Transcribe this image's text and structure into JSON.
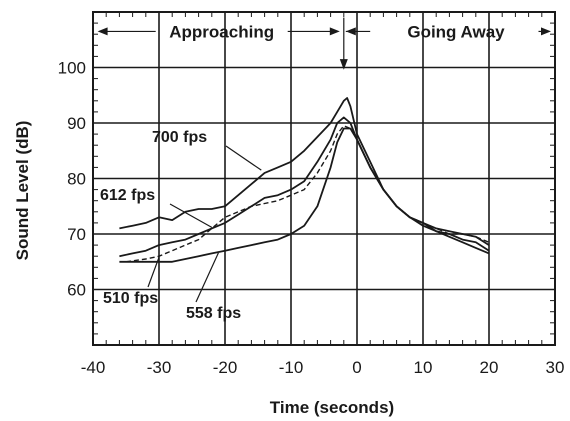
{
  "chart_data": {
    "type": "line",
    "title": "",
    "xlabel": "Time (seconds)",
    "ylabel": "Sound Level (dB)",
    "xlim": [
      -40,
      30
    ],
    "ylim": [
      50,
      110
    ],
    "x_ticks": [
      -40,
      -30,
      -20,
      -10,
      0,
      10,
      20,
      30
    ],
    "y_ticks": [
      60,
      70,
      80,
      90,
      100
    ],
    "x_tick_labels": [
      "-40",
      "-30",
      "-20",
      "-10",
      "0",
      "10",
      "20",
      "30"
    ],
    "y_tick_labels": [
      "60",
      "70",
      "80",
      "90",
      "100"
    ],
    "grid": true,
    "annotations": {
      "approaching": "Approaching",
      "going_away": "Going Away"
    },
    "series": [
      {
        "name": "700 fps",
        "style": "solid",
        "x": [
          -36,
          -34,
          -32,
          -30,
          -28,
          -26,
          -24,
          -22,
          -20,
          -18,
          -16,
          -14,
          -12,
          -10,
          -8,
          -6,
          -4,
          -3,
          -2,
          -1.5,
          -1,
          0,
          2,
          4,
          6,
          8,
          10,
          12,
          14,
          16,
          18,
          20
        ],
        "y": [
          71,
          71.5,
          72,
          73,
          72.5,
          74,
          74.5,
          74.5,
          75,
          77,
          79,
          81,
          82,
          83,
          85,
          87.5,
          90,
          92,
          94,
          94.5,
          93,
          88,
          83,
          78,
          75,
          73,
          72,
          71,
          70.5,
          70,
          69.5,
          68
        ]
      },
      {
        "name": "612 fps",
        "style": "solid",
        "x": [
          -36,
          -34,
          -32,
          -30,
          -28,
          -26,
          -24,
          -22,
          -20,
          -18,
          -16,
          -14,
          -12,
          -10,
          -8,
          -6,
          -4,
          -3,
          -2,
          -1,
          0,
          2,
          4,
          6,
          8,
          10,
          12,
          14,
          16,
          18,
          20
        ],
        "y": [
          66,
          66.5,
          67,
          68,
          68.5,
          69,
          70,
          71,
          72,
          73.5,
          75,
          76.5,
          77,
          78,
          79.5,
          83,
          87,
          90,
          91,
          90,
          87,
          82,
          78,
          75,
          73,
          72,
          70.5,
          70,
          69,
          68.5,
          67
        ]
      },
      {
        "name": "558 fps",
        "style": "solid",
        "x": [
          -36,
          -34,
          -32,
          -30,
          -28,
          -26,
          -24,
          -22,
          -20,
          -18,
          -16,
          -14,
          -12,
          -10,
          -8,
          -6,
          -4,
          -3,
          -2,
          -1,
          0,
          2,
          4,
          6,
          8,
          10,
          12,
          14,
          16,
          18,
          20
        ],
        "y": [
          65,
          65,
          65,
          65,
          65,
          65.5,
          66,
          66.5,
          67,
          67.5,
          68,
          68.5,
          69,
          70,
          71.5,
          75,
          82,
          86.5,
          89,
          89,
          87,
          82,
          78,
          75,
          73,
          71.5,
          70.5,
          69.5,
          68.5,
          67.5,
          66.5
        ]
      },
      {
        "name": "510 fps",
        "style": "dashed",
        "x": [
          -35,
          -32,
          -30,
          -28,
          -26,
          -24,
          -22,
          -20,
          -18,
          -16,
          -14,
          -12,
          -10,
          -8,
          -6,
          -4,
          -3,
          -2,
          -1,
          0,
          2,
          4,
          6,
          8,
          10,
          12,
          14,
          16,
          18,
          20
        ],
        "y": [
          65,
          65.5,
          66,
          67,
          68,
          69,
          71,
          73,
          74,
          75,
          75.5,
          76,
          77,
          78,
          81,
          85,
          88,
          89.5,
          89,
          87,
          82,
          78,
          75,
          73,
          72,
          71,
          70,
          70,
          69.5,
          68.5
        ]
      }
    ],
    "series_labels": [
      {
        "series": "700 fps",
        "text": "700 fps"
      },
      {
        "series": "612 fps",
        "text": "612 fps"
      },
      {
        "series": "510 fps",
        "text": "510 fps"
      },
      {
        "series": "558 fps",
        "text": "558 fps"
      }
    ]
  }
}
